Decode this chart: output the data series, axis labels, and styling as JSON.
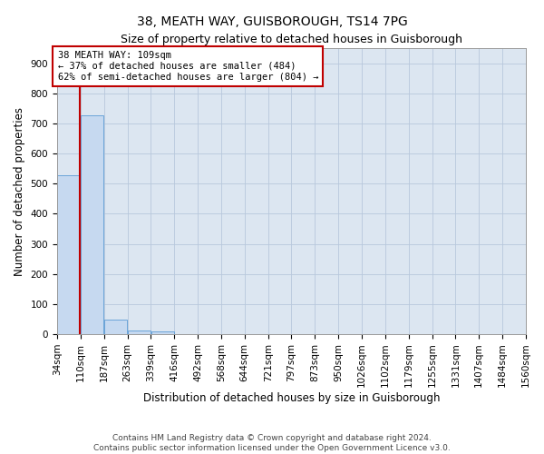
{
  "title1": "38, MEATH WAY, GUISBOROUGH, TS14 7PG",
  "title2": "Size of property relative to detached houses in Guisborough",
  "xlabel": "Distribution of detached houses by size in Guisborough",
  "ylabel": "Number of detached properties",
  "footer1": "Contains HM Land Registry data © Crown copyright and database right 2024.",
  "footer2": "Contains public sector information licensed under the Open Government Licence v3.0.",
  "annotation_line1": "38 MEATH WAY: 109sqm",
  "annotation_line2": "← 37% of detached houses are smaller (484)",
  "annotation_line3": "62% of semi-detached houses are larger (804) →",
  "property_size_sqm": 109,
  "bar_edges": [
    34,
    110,
    187,
    263,
    339,
    416,
    492,
    568,
    644,
    721,
    797,
    873,
    950,
    1026,
    1102,
    1179,
    1255,
    1331,
    1407,
    1484,
    1560
  ],
  "bar_values": [
    527,
    727,
    48,
    13,
    9,
    0,
    0,
    0,
    0,
    0,
    0,
    0,
    0,
    0,
    0,
    0,
    0,
    0,
    0,
    0
  ],
  "bar_color": "#c6d9f0",
  "bar_edge_color": "#5b9bd5",
  "vline_color": "#c00000",
  "vline_x": 109,
  "annotation_box_color": "#c00000",
  "annotation_text_color": "#000000",
  "background_color": "#dce6f1",
  "grid_color": "#b8c8dc",
  "ylim": [
    0,
    950
  ],
  "yticks": [
    0,
    100,
    200,
    300,
    400,
    500,
    600,
    700,
    800,
    900
  ],
  "tick_label_fontsize": 7.5,
  "axis_label_fontsize": 8.5,
  "title1_fontsize": 10,
  "title2_fontsize": 9,
  "ann_fontsize": 7.5,
  "footer_fontsize": 6.5
}
